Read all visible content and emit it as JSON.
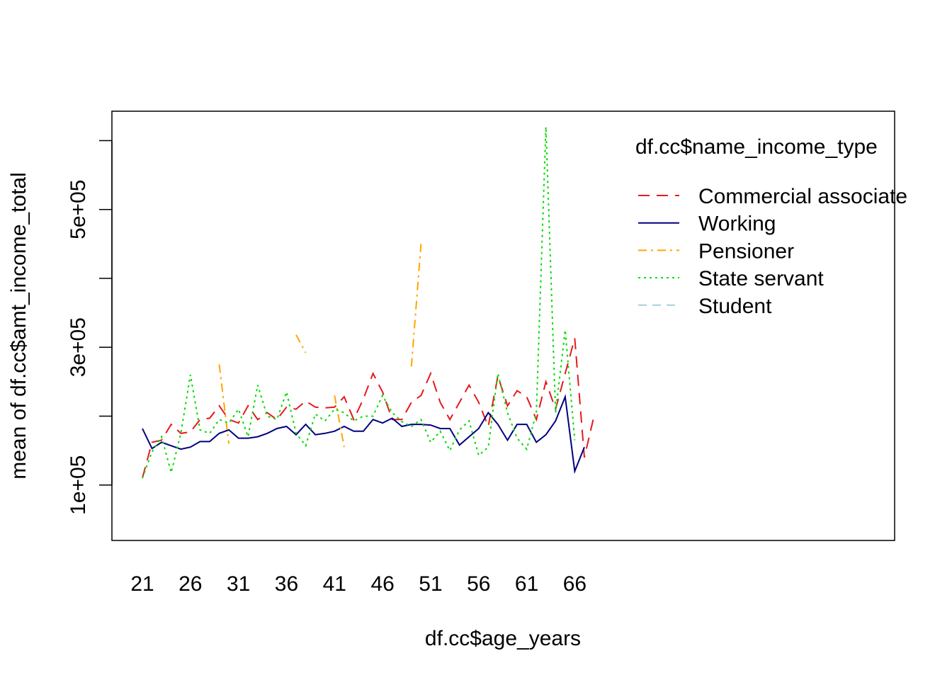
{
  "chart_data": {
    "type": "line",
    "xlabel": "df.cc$age_years",
    "ylabel": "mean of  df.cc$amt_income_total",
    "x_ticks": [
      21,
      26,
      31,
      36,
      41,
      46,
      51,
      56,
      61,
      66
    ],
    "x_range": [
      21,
      67
    ],
    "y_ticks": [
      100000,
      300000,
      500000
    ],
    "y_tick_labels": [
      "1e+05",
      "3e+05",
      "5e+05"
    ],
    "y_minor_ticks": [
      200000,
      400000,
      600000
    ],
    "ylim": [
      38000,
      620000
    ],
    "legend": {
      "title": "df.cc$name_income_type",
      "position": "top-right"
    },
    "series": [
      {
        "name": "Commercial associate",
        "color": "#e41a1c",
        "dash": "16,10",
        "values": [
          [
            21,
            110000
          ],
          [
            22,
            162000
          ],
          [
            23,
            165000
          ],
          [
            24,
            188000
          ],
          [
            25,
            175000
          ],
          [
            26,
            177000
          ],
          [
            27,
            195000
          ],
          [
            28,
            197000
          ],
          [
            29,
            215000
          ],
          [
            30,
            195000
          ],
          [
            31,
            190000
          ],
          [
            32,
            215000
          ],
          [
            33,
            195000
          ],
          [
            34,
            205000
          ],
          [
            35,
            195000
          ],
          [
            36,
            213000
          ],
          [
            37,
            210000
          ],
          [
            38,
            222000
          ],
          [
            39,
            213000
          ],
          [
            40,
            212000
          ],
          [
            41,
            213000
          ],
          [
            42,
            228000
          ],
          [
            43,
            195000
          ],
          [
            44,
            225000
          ],
          [
            45,
            262000
          ],
          [
            46,
            235000
          ],
          [
            47,
            195000
          ],
          [
            48,
            195000
          ],
          [
            49,
            220000
          ],
          [
            50,
            230000
          ],
          [
            51,
            262000
          ],
          [
            52,
            220000
          ],
          [
            53,
            195000
          ],
          [
            54,
            220000
          ],
          [
            55,
            245000
          ],
          [
            56,
            220000
          ],
          [
            57,
            185000
          ],
          [
            58,
            258000
          ],
          [
            59,
            215000
          ],
          [
            60,
            237000
          ],
          [
            61,
            228000
          ],
          [
            62,
            195000
          ],
          [
            63,
            250000
          ],
          [
            64,
            210000
          ],
          [
            65,
            262000
          ],
          [
            66,
            313000
          ],
          [
            67,
            140000
          ],
          [
            68,
            200000
          ]
        ]
      },
      {
        "name": "Working",
        "color": "#000080",
        "dash": "",
        "values": [
          [
            21,
            182000
          ],
          [
            22,
            153000
          ],
          [
            23,
            162000
          ],
          [
            24,
            157000
          ],
          [
            25,
            152000
          ],
          [
            26,
            155000
          ],
          [
            27,
            163000
          ],
          [
            28,
            163000
          ],
          [
            29,
            175000
          ],
          [
            30,
            180000
          ],
          [
            31,
            168000
          ],
          [
            32,
            168000
          ],
          [
            33,
            170000
          ],
          [
            34,
            175000
          ],
          [
            35,
            182000
          ],
          [
            36,
            185000
          ],
          [
            37,
            173000
          ],
          [
            38,
            188000
          ],
          [
            39,
            173000
          ],
          [
            40,
            175000
          ],
          [
            41,
            178000
          ],
          [
            42,
            185000
          ],
          [
            43,
            178000
          ],
          [
            44,
            178000
          ],
          [
            45,
            195000
          ],
          [
            46,
            190000
          ],
          [
            47,
            197000
          ],
          [
            48,
            185000
          ],
          [
            49,
            188000
          ],
          [
            50,
            188000
          ],
          [
            51,
            187000
          ],
          [
            52,
            182000
          ],
          [
            53,
            182000
          ],
          [
            54,
            158000
          ],
          [
            55,
            170000
          ],
          [
            56,
            182000
          ],
          [
            57,
            205000
          ],
          [
            58,
            188000
          ],
          [
            59,
            165000
          ],
          [
            60,
            188000
          ],
          [
            61,
            188000
          ],
          [
            62,
            162000
          ],
          [
            63,
            173000
          ],
          [
            64,
            193000
          ],
          [
            65,
            228000
          ],
          [
            66,
            120000
          ],
          [
            67,
            155000
          ]
        ]
      },
      {
        "name": "Pensioner",
        "color": "#ffa500",
        "dash": "12,6,3,6",
        "values": [
          [
            29,
            275000
          ],
          [
            30,
            160000
          ],
          null,
          [
            37,
            318000
          ],
          [
            38,
            292000
          ],
          null,
          [
            41,
            230000
          ],
          [
            42,
            155000
          ],
          null,
          [
            49,
            272000
          ],
          [
            50,
            450000
          ]
        ]
      },
      {
        "name": "State servant",
        "color": "#00dd00",
        "dash": "3,5",
        "values": [
          [
            21,
            110000
          ],
          [
            22,
            148000
          ],
          [
            23,
            170000
          ],
          [
            24,
            118000
          ],
          [
            25,
            175000
          ],
          [
            26,
            260000
          ],
          [
            27,
            180000
          ],
          [
            28,
            175000
          ],
          [
            29,
            195000
          ],
          [
            30,
            190000
          ],
          [
            31,
            210000
          ],
          [
            32,
            170000
          ],
          [
            33,
            245000
          ],
          [
            34,
            200000
          ],
          [
            35,
            195000
          ],
          [
            36,
            235000
          ],
          [
            37,
            175000
          ],
          [
            38,
            157000
          ],
          [
            39,
            203000
          ],
          [
            40,
            193000
          ],
          [
            41,
            210000
          ],
          [
            42,
            205000
          ],
          [
            43,
            193000
          ],
          [
            44,
            200000
          ],
          [
            45,
            200000
          ],
          [
            46,
            230000
          ],
          [
            47,
            205000
          ],
          [
            48,
            192000
          ],
          [
            49,
            185000
          ],
          [
            50,
            195000
          ],
          [
            51,
            162000
          ],
          [
            52,
            178000
          ],
          [
            53,
            150000
          ],
          [
            54,
            180000
          ],
          [
            55,
            193000
          ],
          [
            56,
            143000
          ],
          [
            57,
            155000
          ],
          [
            58,
            262000
          ],
          [
            59,
            205000
          ],
          [
            60,
            168000
          ],
          [
            61,
            152000
          ],
          [
            62,
            205000
          ],
          [
            63,
            620000
          ],
          [
            64,
            205000
          ],
          [
            65,
            325000
          ],
          [
            66,
            165000
          ]
        ]
      },
      {
        "name": "Student",
        "color": "#a6cee3",
        "dash": "12,8",
        "values": []
      }
    ]
  }
}
